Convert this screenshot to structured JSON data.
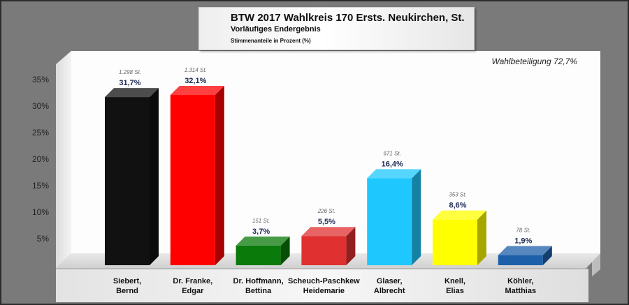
{
  "header": {
    "title": "BTW 2017 Wahlkreis 170 Ersts. Neukirchen, St.",
    "subtitle": "Vorläufiges Endergebnis",
    "note": "Stimmenanteile in Prozent (%)"
  },
  "turnout_label": "Wahlbeteiligung 72,7%",
  "chart_data": {
    "type": "bar",
    "title": "BTW 2017 Wahlkreis 170 Ersts. Neukirchen, St.",
    "ylim": [
      0,
      35
    ],
    "yticks": [
      "5%",
      "10%",
      "15%",
      "20%",
      "25%",
      "30%",
      "35%"
    ],
    "ytick_values": [
      5,
      10,
      15,
      20,
      25,
      30,
      35
    ],
    "grid": false,
    "categories": [
      [
        "Siebert,",
        "Bernd"
      ],
      [
        "Dr. Franke,",
        "Edgar"
      ],
      [
        "Dr. Hoffmann,",
        "Bettina"
      ],
      [
        "Scheuch-Paschkew",
        "Heidemarie"
      ],
      [
        "Glaser,",
        "Albrecht"
      ],
      [
        "Knell,",
        "Elias"
      ],
      [
        "Köhler,",
        "Matthias"
      ]
    ],
    "values": [
      31.7,
      32.1,
      3.7,
      5.5,
      16.4,
      8.6,
      1.9
    ],
    "value_labels": [
      "31,7%",
      "32,1%",
      "3,7%",
      "5,5%",
      "16,4%",
      "8,6%",
      "1,9%"
    ],
    "votes": [
      "1.298 St.",
      "1.314 St.",
      "151 St.",
      "226 St.",
      "671 St.",
      "353 St.",
      "78 St."
    ],
    "colors": [
      "#111111",
      "#ff0000",
      "#0a7a0a",
      "#e03030",
      "#1ec8ff",
      "#ffff00",
      "#1d5fa8"
    ]
  }
}
